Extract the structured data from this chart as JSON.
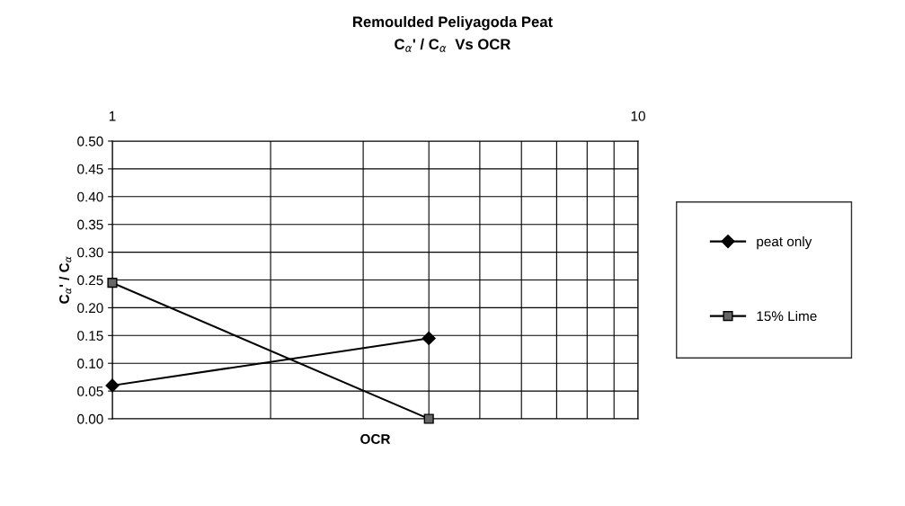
{
  "chart_data": {
    "type": "line",
    "title": "Remoulded Peliyagoda Peat",
    "subtitle": "C$_{α}$' / C$_{α}$  Vs OCR",
    "xlabel": "OCR",
    "ylabel": "C$_{α}$' / C$_{α}$",
    "x": [
      1,
      4
    ],
    "series": [
      {
        "name": "peat only",
        "color": "#000000",
        "marker": "diamond",
        "values": [
          0.06,
          0.145
        ]
      },
      {
        "name": "15% Lime",
        "color": "#000000",
        "marker": "square",
        "values": [
          0.245,
          0.0
        ]
      }
    ],
    "log": "x",
    "xlim": [
      1,
      10
    ],
    "xticks": [
      1,
      {
        "value": 2,
        "label": null
      },
      {
        "value": 3,
        "label": null
      },
      {
        "value": 4,
        "label": null
      },
      {
        "value": 5,
        "label": null
      },
      {
        "value": 6,
        "label": null
      },
      {
        "value": 7,
        "label": null
      },
      {
        "value": 8,
        "label": null
      },
      {
        "value": 9,
        "label": null
      },
      10
    ],
    "ylim": [
      0,
      0.5
    ],
    "yticks": [
      {
        "value": 0,
        "label": "0.00"
      },
      {
        "value": 0.05,
        "label": "0.05"
      },
      {
        "value": 0.1,
        "label": "0.10"
      },
      {
        "value": 0.15,
        "label": "0.15"
      },
      {
        "value": 0.2,
        "label": "0.20"
      },
      {
        "value": 0.25,
        "label": "0.25"
      },
      {
        "value": 0.3,
        "label": "0.30"
      },
      {
        "value": 0.35,
        "label": "0.35"
      },
      {
        "value": 0.4,
        "label": "0.40"
      },
      {
        "value": 0.45,
        "label": "0.45"
      },
      {
        "value": 0.5,
        "label": "0.50"
      }
    ],
    "grid": true,
    "legend": "right",
    "line_style": "solid"
  }
}
